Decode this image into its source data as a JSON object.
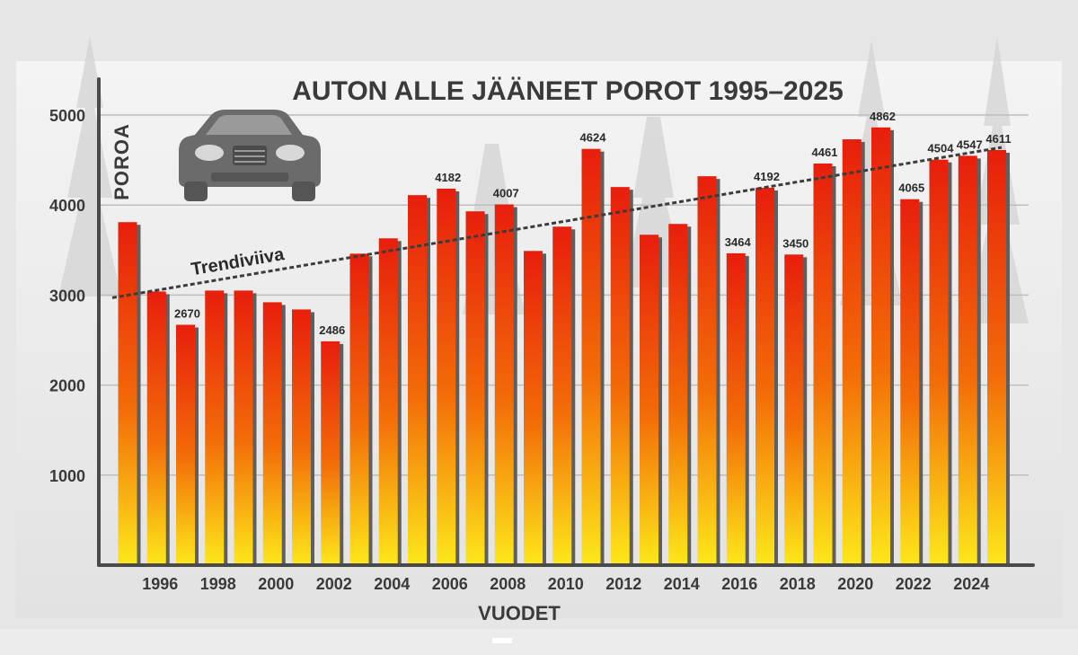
{
  "chart_data": {
    "type": "bar",
    "title": "AUTON ALLE JÄÄNEET POROT 1995–2025",
    "ylabel": "POROA",
    "xlabel": "VUODET",
    "trend_label": "Trendiviiva",
    "ylim": [
      0,
      5000
    ],
    "yticks": [
      1000,
      2000,
      3000,
      4000,
      5000
    ],
    "grid": true,
    "categories": [
      "1995",
      "1996",
      "1997",
      "1998",
      "1999",
      "2000",
      "2001",
      "2002",
      "2003",
      "2004",
      "2005",
      "2006",
      "2007",
      "2008",
      "2009",
      "2010",
      "2011",
      "2012",
      "2013",
      "2014",
      "2015",
      "2016",
      "2017",
      "2018",
      "2019",
      "2020",
      "2021",
      "2022",
      "2023",
      "2024",
      "2025"
    ],
    "x_tick_labels": [
      "1996",
      "1998",
      "2000",
      "2002",
      "2004",
      "2006",
      "2008",
      "2010",
      "2012",
      "2014",
      "2016",
      "2018",
      "2020",
      "2022",
      "2024"
    ],
    "values": [
      3810,
      3040,
      2670,
      3050,
      3050,
      2920,
      2840,
      2486,
      3460,
      3630,
      4110,
      4182,
      3930,
      4007,
      3490,
      3760,
      4624,
      4200,
      3670,
      3790,
      4320,
      3464,
      4192,
      3450,
      4461,
      4730,
      4862,
      4065,
      4504,
      4547,
      4611
    ],
    "data_labels": [
      {
        "index": 2,
        "text": "2670"
      },
      {
        "index": 7,
        "text": "2486"
      },
      {
        "index": 11,
        "text": "4182"
      },
      {
        "index": 13,
        "text": "4007"
      },
      {
        "index": 16,
        "text": "4624"
      },
      {
        "index": 21,
        "text": "3464"
      },
      {
        "index": 22,
        "text": "4192"
      },
      {
        "index": 23,
        "text": "3450"
      },
      {
        "index": 24,
        "text": "4461"
      },
      {
        "index": 26,
        "text": "4862"
      },
      {
        "index": 27,
        "text": "4065"
      },
      {
        "index": 28,
        "text": "4504"
      },
      {
        "index": 29,
        "text": "4547"
      },
      {
        "index": 30,
        "text": "4611"
      }
    ],
    "trendline": {
      "start_value": 2970,
      "end_value": 4640
    },
    "colors": {
      "bar_top": "#e81e0c",
      "bar_mid": "#f36d08",
      "bar_bottom": "#fde81a",
      "bar_shadow": "#5f5f5f",
      "axis": "#4a4a4a",
      "grid": "#bdbdbd",
      "trendline": "#3c3c3c"
    },
    "icon": "car-icon"
  }
}
